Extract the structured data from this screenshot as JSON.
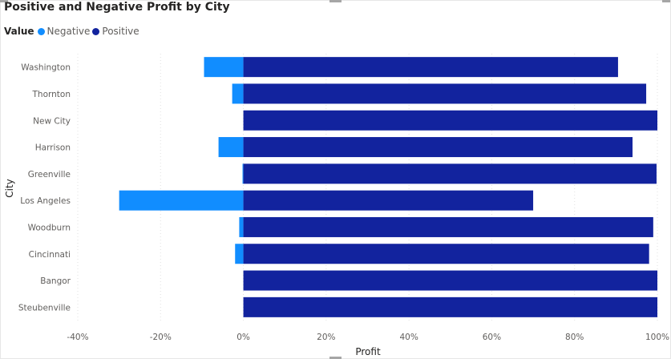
{
  "chart_data": {
    "type": "bar",
    "orientation": "horizontal",
    "stacked": true,
    "title": "Positive and Negative Profit by City",
    "xlabel": "Profit",
    "ylabel": "City",
    "xlim": [
      -40,
      100
    ],
    "xticks": [
      "-40%",
      "-20%",
      "0%",
      "20%",
      "40%",
      "60%",
      "80%",
      "100%"
    ],
    "xtick_values": [
      -40,
      -20,
      0,
      20,
      40,
      60,
      80,
      100
    ],
    "grid": true,
    "legend": {
      "title": "Value",
      "position": "top-left",
      "entries": [
        "Negative",
        "Positive"
      ]
    },
    "categories": [
      "Washington",
      "Thornton",
      "New City",
      "Harrison",
      "Greenville",
      "Los Angeles",
      "Woodburn",
      "Cincinnati",
      "Bangor",
      "Steubenville"
    ],
    "series": [
      {
        "name": "Negative",
        "color": "#118dff",
        "values": [
          -9.5,
          -2.7,
          0,
          -6,
          -0.2,
          -30,
          -1,
          -2,
          0,
          0
        ]
      },
      {
        "name": "Positive",
        "color": "#12239e",
        "values": [
          90.5,
          97.3,
          100,
          94,
          99.8,
          70,
          99,
          98,
          100,
          100
        ]
      }
    ]
  }
}
